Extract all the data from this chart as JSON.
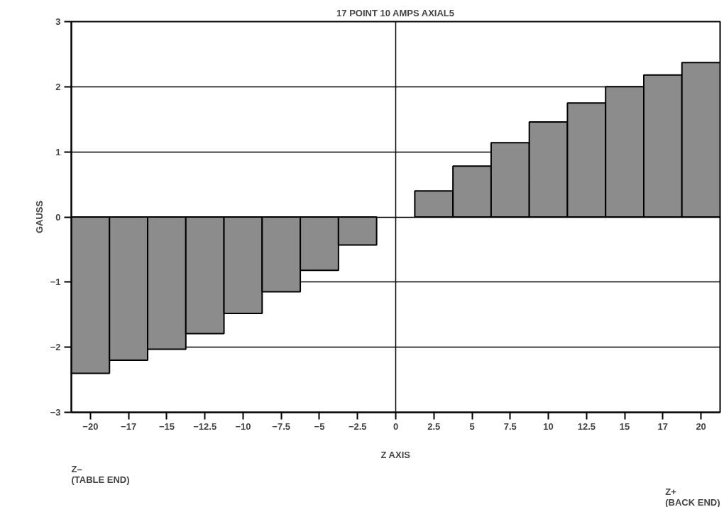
{
  "chart_data": {
    "type": "bar",
    "title": "17 POINT 10 AMPS AXIAL5",
    "xlabel": "Z AXIS",
    "ylabel": "GAUSS",
    "categories": [
      "−20",
      "−17",
      "−15",
      "−12.5",
      "−10",
      "−7.5",
      "−5",
      "−2.5",
      "0",
      "2.5",
      "5",
      "7.5",
      "10",
      "12.5",
      "15",
      "17",
      "20"
    ],
    "values": [
      -2.4,
      -2.2,
      -2.03,
      -1.79,
      -1.48,
      -1.15,
      -0.82,
      -0.43,
      null,
      0.4,
      0.78,
      1.14,
      1.46,
      1.75,
      2.0,
      2.18,
      2.37
    ],
    "color": "#8c8c8c",
    "ylim": [
      -3,
      3
    ],
    "yticks": [
      {
        "value": -3,
        "label": "−3"
      },
      {
        "value": -2,
        "label": "−2"
      },
      {
        "value": -1,
        "label": "−1"
      },
      0,
      1,
      2,
      3
    ],
    "grid": "y",
    "ref_lines": [
      {
        "axis": "x",
        "value": "0",
        "label": null,
        "color": "#000000"
      }
    ],
    "annotations": [
      "Z–\n(TABLE END)",
      "Z+\n(BACK END)"
    ]
  }
}
